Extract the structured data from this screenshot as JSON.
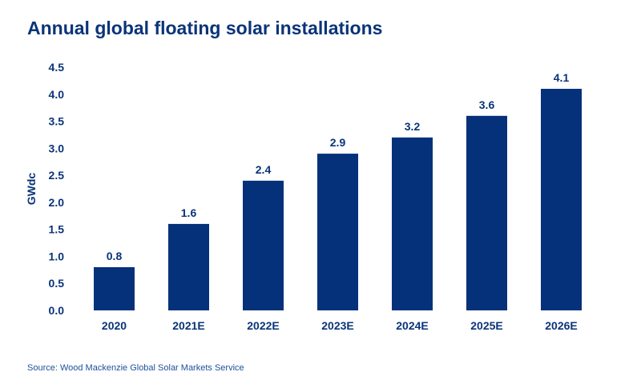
{
  "chart_data": {
    "type": "bar",
    "title": "Annual global floating solar installations",
    "xlabel": "",
    "ylabel": "GWdc",
    "categories": [
      "2020",
      "2021E",
      "2022E",
      "2023E",
      "2024E",
      "2025E",
      "2026E"
    ],
    "values": [
      0.8,
      1.6,
      2.4,
      2.9,
      3.2,
      3.6,
      4.1
    ],
    "data_labels": [
      "0.8",
      "1.6",
      "2.4",
      "2.9",
      "3.2",
      "3.6",
      "4.1"
    ],
    "ylim": [
      0,
      4.5
    ],
    "yticks": [
      "0.0",
      "0.5",
      "1.0",
      "1.5",
      "2.0",
      "2.5",
      "3.0",
      "3.5",
      "4.0",
      "4.5"
    ],
    "grid": false,
    "legend": "none",
    "bar_color": "#05317a",
    "source": "Source: Wood Mackenzie Global Solar Markets Service"
  }
}
